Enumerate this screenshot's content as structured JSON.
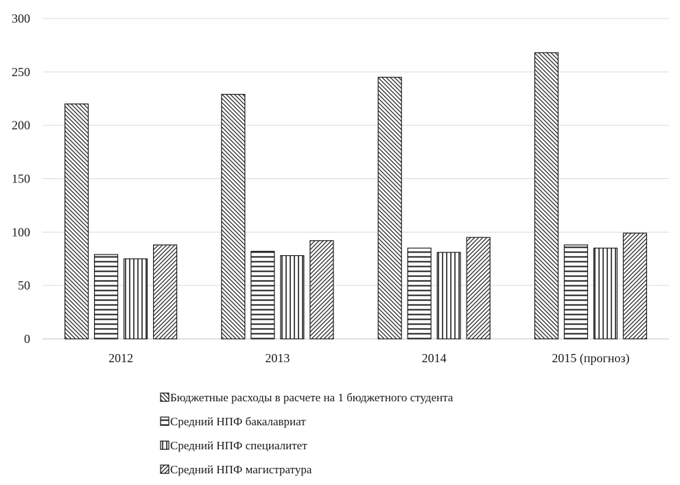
{
  "chart_data": {
    "type": "bar",
    "title": "",
    "xlabel": "",
    "ylabel": "",
    "ylim": [
      0,
      300
    ],
    "yticks": [
      0,
      50,
      100,
      150,
      200,
      250,
      300
    ],
    "grid": true,
    "legend_position": "bottom",
    "categories": [
      "2012",
      "2013",
      "2014",
      "2015 (прогноз)"
    ],
    "series": [
      {
        "name": "Бюджетные расходы в расчете на 1 бюджетного студента",
        "values": [
          220,
          229,
          245,
          268
        ],
        "pattern": "diag-back"
      },
      {
        "name": "Средний НПФ бакалавриат",
        "values": [
          79,
          82,
          85,
          88
        ],
        "pattern": "horizontal"
      },
      {
        "name": "Средний НПФ специалитет",
        "values": [
          75,
          78,
          81,
          85
        ],
        "pattern": "vertical"
      },
      {
        "name": "Средний НПФ магистратура",
        "values": [
          88,
          92,
          95,
          99
        ],
        "pattern": "diag-fwd"
      }
    ],
    "colors": {
      "stroke": "#1a1a1a",
      "grid": "#d9d9d9",
      "axis": "#bfbfbf",
      "fill": "#ffffff"
    }
  }
}
